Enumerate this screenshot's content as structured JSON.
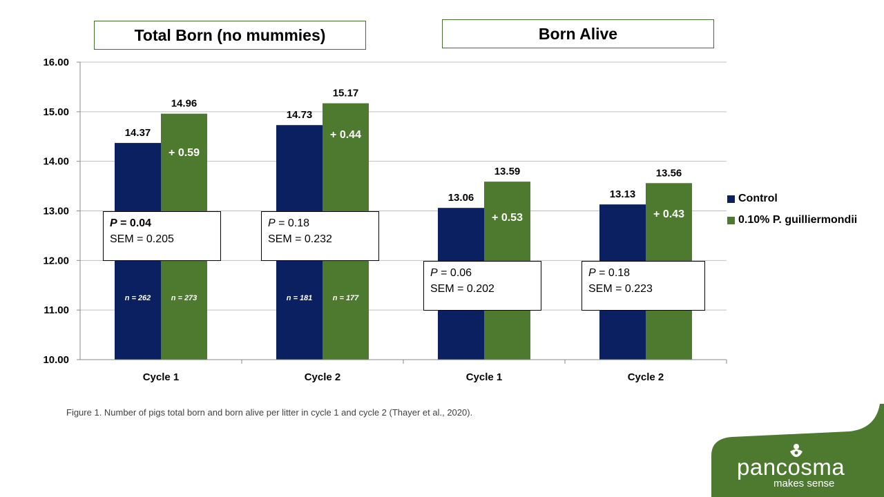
{
  "colors": {
    "control": "#0a2060",
    "treatment": "#4e7a30",
    "brand": "#4e7a30",
    "grid": "#bfbfbf"
  },
  "panels": [
    {
      "title": "Total Born (no mummies)"
    },
    {
      "title": "Born Alive"
    }
  ],
  "chart_data": {
    "type": "bar",
    "categories": [
      "Cycle 1",
      "Cycle 2",
      "Cycle 1",
      "Cycle 2"
    ],
    "series": [
      {
        "name": "Control",
        "values": [
          14.37,
          14.73,
          13.06,
          13.13
        ]
      },
      {
        "name": "0.10% P. guilliermondii",
        "values": [
          14.96,
          15.17,
          13.59,
          13.56
        ]
      }
    ],
    "ylim": [
      10,
      16
    ],
    "yticks": [
      "10.00",
      "11.00",
      "12.00",
      "13.00",
      "14.00",
      "15.00",
      "16.00"
    ],
    "value_labels": {
      "control": [
        "14.37",
        "14.73",
        "13.06",
        "13.13"
      ],
      "treatment": [
        "14.96",
        "15.17",
        "13.59",
        "13.56"
      ]
    },
    "differences": [
      "+ 0.59",
      "+ 0.44",
      "+ 0.53",
      "+ 0.43"
    ],
    "n_labels": {
      "control": [
        "n = 262",
        "n = 181",
        "",
        ""
      ],
      "treatment": [
        "n = 273",
        "n = 177",
        "",
        ""
      ]
    },
    "grid": true,
    "legend_position": "right"
  },
  "stats": [
    {
      "p_label": "P",
      "p_value": "= 0.04",
      "bold": true,
      "sem": "SEM = 0.205"
    },
    {
      "p_label": "P",
      "p_value": "= 0.18",
      "bold": false,
      "sem": "SEM = 0.232"
    },
    {
      "p_label": "P",
      "p_value": "= 0.06",
      "bold": false,
      "sem": "SEM = 0.202"
    },
    {
      "p_label": "P",
      "p_value": "= 0.18",
      "bold": false,
      "sem": "SEM = 0.223"
    }
  ],
  "legend": [
    {
      "label": "Control",
      "color": "#0a2060"
    },
    {
      "label": "0.10% P. guilliermondii",
      "color": "#4e7a30"
    }
  ],
  "caption": "Figure 1. Number of pigs total born and born alive per litter in cycle 1 and cycle 2 (Thayer et al., 2020).",
  "brand": {
    "name": "pancosma",
    "tagline": "makes sense",
    "logo_icon": "leaf-person-icon"
  }
}
